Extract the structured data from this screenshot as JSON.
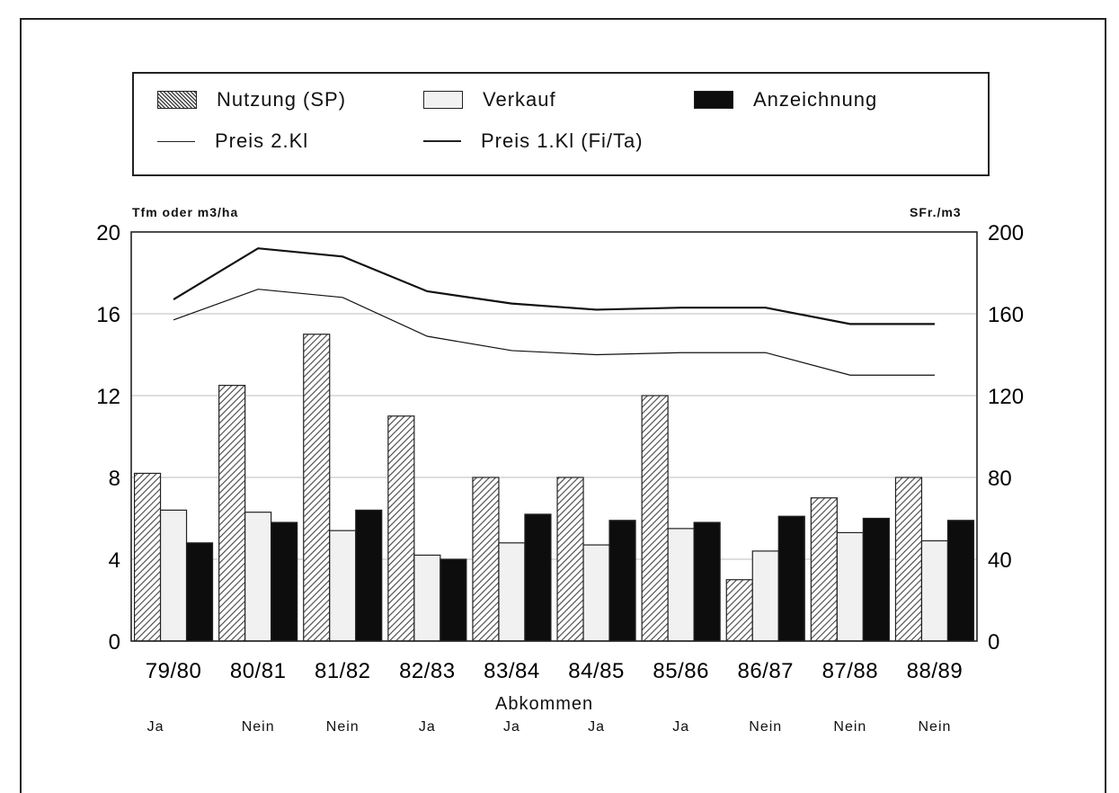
{
  "legend": {
    "nutzung": "Nutzung (SP)",
    "verkauf": "Verkauf",
    "anzeichnung": "Anzeichnung",
    "preis2": "Preis 2.Kl",
    "preis1": "Preis 1.Kl (Fi/Ta)"
  },
  "chart_data": {
    "type": "bar",
    "categories": [
      "79/80",
      "80/81",
      "81/82",
      "82/83",
      "83/84",
      "84/85",
      "85/86",
      "86/87",
      "87/88",
      "88/89"
    ],
    "xlabel": "Abkommen",
    "ylabel": "Tfm oder m3/ha",
    "ylabel_right": "SFr./m3",
    "ylim": [
      0,
      20
    ],
    "ylim_right": [
      0,
      200
    ],
    "yticks": [
      0,
      4,
      8,
      12,
      16,
      20
    ],
    "yticks_right": [
      0,
      40,
      80,
      120,
      160,
      200
    ],
    "grid": true,
    "legend_position": "top",
    "series": [
      {
        "name": "Nutzung (SP)",
        "kind": "bar",
        "axis": "left",
        "style": "hatched",
        "values": [
          8.2,
          12.5,
          15.0,
          11.0,
          8.0,
          8.0,
          12.0,
          3.0,
          7.0,
          8.0
        ]
      },
      {
        "name": "Verkauf",
        "kind": "bar",
        "axis": "left",
        "style": "light",
        "values": [
          6.4,
          6.3,
          5.4,
          4.2,
          4.8,
          4.7,
          5.5,
          4.4,
          5.3,
          4.9
        ]
      },
      {
        "name": "Anzeichnung",
        "kind": "bar",
        "axis": "left",
        "style": "dark",
        "values": [
          4.8,
          5.8,
          6.4,
          4.0,
          6.2,
          5.9,
          5.8,
          6.1,
          6.0,
          5.9
        ]
      },
      {
        "name": "Preis 2.Kl",
        "kind": "line",
        "axis": "right",
        "style": "thin",
        "values": [
          157,
          172,
          168,
          149,
          142,
          140,
          141,
          141,
          130,
          130
        ]
      },
      {
        "name": "Preis 1.Kl (Fi/Ta)",
        "kind": "line",
        "axis": "right",
        "style": "thick",
        "values": [
          167,
          192,
          188,
          171,
          165,
          162,
          163,
          163,
          155,
          155
        ]
      }
    ],
    "footer_values": [
      "Ja",
      "Nein",
      "Nein",
      "Ja",
      "Ja",
      "Ja",
      "Ja",
      "Nein",
      "Nein",
      "Nein"
    ]
  },
  "colors": {
    "axis": "#222222",
    "grid": "#bdbdbd",
    "hatch_fg": "#444444",
    "light_bar": "#f1f1f1",
    "dark_bar": "#0d0d0d"
  }
}
